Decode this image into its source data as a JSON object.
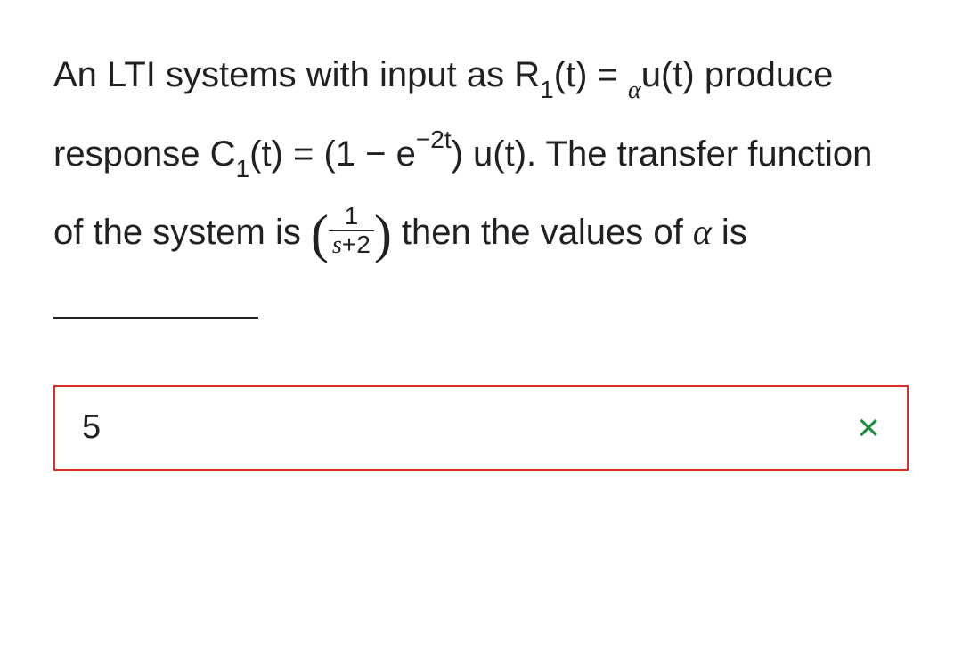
{
  "question": {
    "part1": "An LTI systems with input as R",
    "sub1": "1",
    "part2": "(t) = ",
    "alpha1": "α",
    "part3": "u(t) produce response C",
    "sub2": "1",
    "part4": "(t) = (1 − e",
    "sup1": "−2t",
    "part5": ") u(t). The transfer function of the system is ",
    "frac_num": "1",
    "frac_den_s": "s",
    "frac_den_rest": "+2",
    "part6": " then the values of ",
    "alpha2": "α",
    "part7": " is "
  },
  "answer": {
    "value": "5",
    "icon": "×",
    "box_border_color": "#d93025",
    "icon_color": "#1e8e3e"
  }
}
